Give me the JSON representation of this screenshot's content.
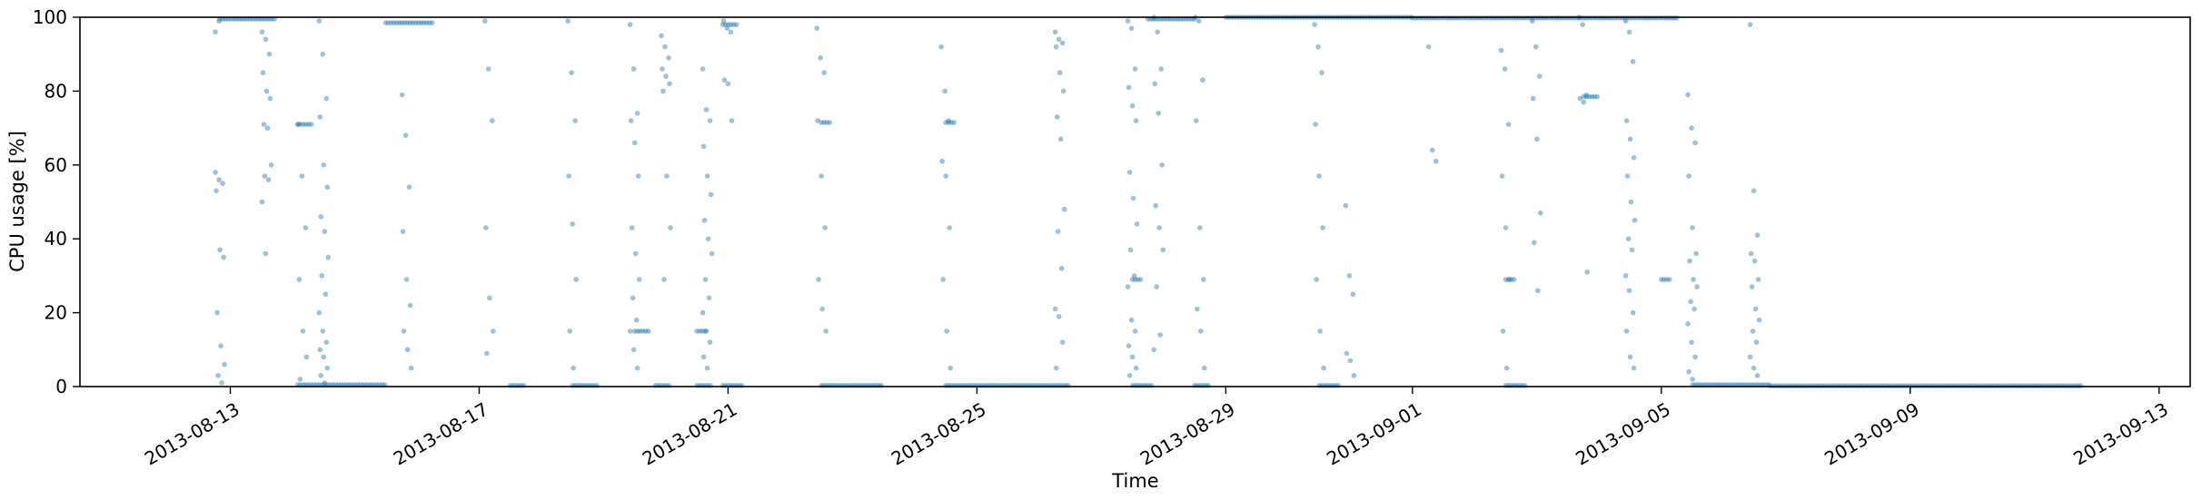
{
  "chart_data": {
    "type": "scatter",
    "title": "",
    "xlabel": "Time",
    "ylabel": "CPU usage [%]",
    "ylim": [
      0,
      100
    ],
    "xlim": [
      "2013-08-10T14:00",
      "2013-09-13T12:00"
    ],
    "grid": false,
    "marker_color": "#1f77b4",
    "marker_alpha": 0.45,
    "x_ticks": [
      {
        "value": "2013-08-13",
        "label": "2013-08-13"
      },
      {
        "value": "2013-08-17",
        "label": "2013-08-17"
      },
      {
        "value": "2013-08-21",
        "label": "2013-08-21"
      },
      {
        "value": "2013-08-25",
        "label": "2013-08-25"
      },
      {
        "value": "2013-08-29",
        "label": "2013-08-29"
      },
      {
        "value": "2013-09-01",
        "label": "2013-09-01"
      },
      {
        "value": "2013-09-05",
        "label": "2013-09-05"
      },
      {
        "value": "2013-09-09",
        "label": "2013-09-09"
      },
      {
        "value": "2013-09-13",
        "label": "2013-09-13"
      }
    ],
    "y_ticks": [
      0,
      20,
      40,
      60,
      80,
      100
    ],
    "runs": [
      {
        "start": "2013-08-14T02:00",
        "end": "2013-08-15T12:00",
        "y": 0.5
      },
      {
        "start": "2013-08-17T12:00",
        "end": "2013-08-17T18:00",
        "y": 0.3
      },
      {
        "start": "2013-08-18T12:00",
        "end": "2013-08-18T22:00",
        "y": 0.3
      },
      {
        "start": "2013-08-19T20:00",
        "end": "2013-08-20T02:00",
        "y": 0.3
      },
      {
        "start": "2013-08-20T12:00",
        "end": "2013-08-20T18:00",
        "y": 0.3
      },
      {
        "start": "2013-08-20T22:00",
        "end": "2013-08-21T06:00",
        "y": 0.3
      },
      {
        "start": "2013-08-22T12:00",
        "end": "2013-08-23T12:00",
        "y": 0.3
      },
      {
        "start": "2013-08-24T12:00",
        "end": "2013-08-26T12:00",
        "y": 0.3
      },
      {
        "start": "2013-08-27T12:00",
        "end": "2013-08-27T20:00",
        "y": 0.3
      },
      {
        "start": "2013-08-28T12:00",
        "end": "2013-08-28T18:00",
        "y": 0.3
      },
      {
        "start": "2013-08-30T12:00",
        "end": "2013-08-30T20:00",
        "y": 0.3
      },
      {
        "start": "2013-09-02T12:00",
        "end": "2013-09-02T20:00",
        "y": 0.3
      },
      {
        "start": "2013-09-05T12:00",
        "end": "2013-09-06T18:00",
        "y": 0.5
      },
      {
        "start": "2013-09-06T18:00",
        "end": "2013-09-11T18:00",
        "y": 0.2
      },
      {
        "start": "2013-08-14T02:00",
        "end": "2013-08-14T08:00",
        "y": 71
      },
      {
        "start": "2013-08-12T20:00",
        "end": "2013-08-13T18:00",
        "y": 99.5
      },
      {
        "start": "2013-08-15T12:00",
        "end": "2013-08-16T06:00",
        "y": 98.5
      },
      {
        "start": "2013-08-20T22:00",
        "end": "2013-08-21T04:00",
        "y": 98
      },
      {
        "start": "2013-08-27T18:00",
        "end": "2013-08-28T12:00",
        "y": 99.5
      },
      {
        "start": "2013-08-29T00:00",
        "end": "2013-09-01T00:00",
        "y": 100
      },
      {
        "start": "2013-09-01T00:00",
        "end": "2013-09-05T06:00",
        "y": 99.8
      },
      {
        "start": "2013-08-22T12:00",
        "end": "2013-08-22T16:00",
        "y": 71.5
      },
      {
        "start": "2013-08-24T12:00",
        "end": "2013-08-24T16:00",
        "y": 71.5
      },
      {
        "start": "2013-08-27T12:00",
        "end": "2013-08-27T16:00",
        "y": 29
      },
      {
        "start": "2013-09-02T12:00",
        "end": "2013-09-02T16:00",
        "y": 29
      },
      {
        "start": "2013-09-05T00:00",
        "end": "2013-09-05T04:00",
        "y": 29
      },
      {
        "start": "2013-08-19T12:00",
        "end": "2013-08-19T18:00",
        "y": 15
      },
      {
        "start": "2013-08-20T12:00",
        "end": "2013-08-20T16:00",
        "y": 15
      },
      {
        "start": "2013-09-03T18:00",
        "end": "2013-09-04T00:00",
        "y": 78.5
      }
    ],
    "columns": [
      {
        "x": "2013-08-12T20:00",
        "y": [
          58,
          56,
          55,
          53,
          37,
          35,
          20,
          11,
          6,
          3,
          1,
          96,
          99
        ]
      },
      {
        "x": "2013-08-13T14:00",
        "y": [
          96,
          94,
          90,
          85,
          80,
          78,
          71,
          70,
          60,
          57,
          56,
          50,
          36
        ]
      },
      {
        "x": "2013-08-14T04:00",
        "y": [
          71,
          57,
          43,
          29,
          15,
          8,
          2
        ]
      },
      {
        "x": "2013-08-14T12:00",
        "y": [
          99,
          90,
          78,
          73,
          60,
          54,
          46,
          42,
          35,
          30,
          25,
          20,
          15,
          12,
          10,
          8,
          5,
          3,
          1
        ]
      },
      {
        "x": "2013-08-15T20:00",
        "y": [
          79,
          68,
          54,
          42,
          29,
          22,
          15,
          10,
          5
        ]
      },
      {
        "x": "2013-08-17T04:00",
        "y": [
          99,
          86,
          72,
          43,
          24,
          15,
          9
        ]
      },
      {
        "x": "2013-08-18T12:00",
        "y": [
          99,
          85,
          72,
          57,
          44,
          29,
          15,
          5
        ]
      },
      {
        "x": "2013-08-19T12:00",
        "y": [
          98,
          86,
          74,
          72,
          66,
          57,
          43,
          36,
          29,
          24,
          18,
          15,
          10,
          5
        ]
      },
      {
        "x": "2013-08-20T00:00",
        "y": [
          95,
          92,
          89,
          86,
          84,
          82,
          80,
          57,
          43,
          29
        ]
      },
      {
        "x": "2013-08-20T16:00",
        "y": [
          86,
          75,
          72,
          65,
          57,
          52,
          45,
          40,
          36,
          29,
          24,
          20,
          15,
          12,
          8,
          5
        ]
      },
      {
        "x": "2013-08-21T00:00",
        "y": [
          99,
          97,
          96,
          83,
          82,
          72
        ]
      },
      {
        "x": "2013-08-22T12:00",
        "y": [
          97,
          89,
          85,
          72,
          57,
          43,
          29,
          21,
          15
        ]
      },
      {
        "x": "2013-08-24T12:00",
        "y": [
          92,
          80,
          72,
          61,
          57,
          43,
          29,
          15,
          5
        ]
      },
      {
        "x": "2013-08-26T08:00",
        "y": [
          96,
          94,
          93,
          92,
          85,
          80,
          73,
          67,
          48,
          42,
          32,
          21,
          19,
          12,
          5
        ]
      },
      {
        "x": "2013-08-27T12:00",
        "y": [
          99,
          97,
          86,
          81,
          76,
          72,
          58,
          51,
          44,
          37,
          30,
          27,
          18,
          15,
          11,
          8,
          5,
          3
        ]
      },
      {
        "x": "2013-08-27T22:00",
        "y": [
          100,
          96,
          86,
          82,
          74,
          60,
          49,
          43,
          37,
          27,
          14,
          10
        ]
      },
      {
        "x": "2013-08-28T14:00",
        "y": [
          100,
          99,
          83,
          72,
          43,
          29,
          21,
          15,
          5
        ]
      },
      {
        "x": "2013-08-30T12:00",
        "y": [
          98,
          92,
          85,
          71,
          57,
          43,
          29,
          15,
          5
        ]
      },
      {
        "x": "2013-08-31T00:00",
        "y": [
          49,
          30,
          25,
          9,
          7,
          3
        ]
      },
      {
        "x": "2013-09-01T08:00",
        "y": [
          92,
          64,
          61
        ]
      },
      {
        "x": "2013-09-02T12:00",
        "y": [
          91,
          86,
          71,
          57,
          43,
          29,
          15,
          5
        ]
      },
      {
        "x": "2013-09-03T00:00",
        "y": [
          99,
          92,
          84,
          78,
          67,
          47,
          39,
          26
        ]
      },
      {
        "x": "2013-09-03T18:00",
        "y": [
          100,
          98,
          79,
          78,
          77,
          31
        ]
      },
      {
        "x": "2013-09-04T12:00",
        "y": [
          99,
          96,
          88,
          72,
          67,
          62,
          57,
          50,
          45,
          40,
          37,
          30,
          26,
          20,
          15,
          8,
          5
        ]
      },
      {
        "x": "2013-09-05T12:00",
        "y": [
          79,
          70,
          66,
          57,
          43,
          36,
          34,
          29,
          27,
          23,
          21,
          17,
          12,
          8,
          4,
          2
        ]
      },
      {
        "x": "2013-09-06T12:00",
        "y": [
          98,
          53,
          41,
          36,
          34,
          29,
          27,
          21,
          18,
          15,
          12,
          8,
          5,
          3
        ]
      }
    ]
  }
}
